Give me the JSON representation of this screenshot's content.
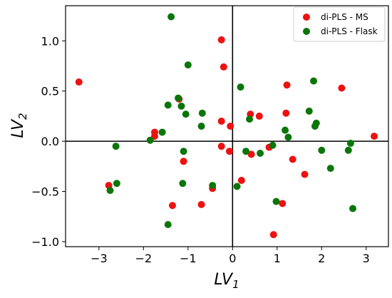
{
  "chart_data": {
    "type": "scatter",
    "title": "",
    "xlabel": "LV",
    "xlabel_subscript": "1",
    "ylabel": "LV",
    "ylabel_subscript": "2",
    "xlim": [
      -3.75,
      3.5
    ],
    "ylim": [
      -1.05,
      1.35
    ],
    "xticks": [
      -3,
      -2,
      -1,
      0,
      1,
      2,
      3
    ],
    "xtick_labels": [
      "−3",
      "−2",
      "−1",
      "0",
      "1",
      "2",
      "3"
    ],
    "yticks": [
      -1.0,
      -0.5,
      0.0,
      0.5,
      1.0
    ],
    "ytick_labels": [
      "−1.0",
      "−0.5",
      "0.0",
      "0.5",
      "1.0"
    ],
    "grid": false,
    "zero_lines": true,
    "legend_position": "top-right",
    "series": [
      {
        "name": "di-PLS - MS",
        "color": "#ee1111",
        "points": [
          [
            -3.45,
            0.59
          ],
          [
            -2.78,
            -0.44
          ],
          [
            -1.75,
            0.09
          ],
          [
            -1.75,
            0.05
          ],
          [
            -1.2,
            0.42
          ],
          [
            -1.1,
            -0.2
          ],
          [
            -1.35,
            -0.64
          ],
          [
            -0.7,
            -0.63
          ],
          [
            -0.45,
            -0.47
          ],
          [
            -0.25,
            1.01
          ],
          [
            -0.2,
            0.74
          ],
          [
            -0.25,
            0.2
          ],
          [
            -0.05,
            0.15
          ],
          [
            -0.25,
            -0.05
          ],
          [
            -0.07,
            -0.1
          ],
          [
            0.2,
            -0.39
          ],
          [
            0.4,
            0.27
          ],
          [
            0.42,
            -0.13
          ],
          [
            0.6,
            0.25
          ],
          [
            0.82,
            -0.06
          ],
          [
            0.92,
            -0.93
          ],
          [
            1.12,
            -0.62
          ],
          [
            1.2,
            0.28
          ],
          [
            1.22,
            0.56
          ],
          [
            1.35,
            -0.18
          ],
          [
            1.62,
            -0.33
          ],
          [
            2.45,
            0.53
          ],
          [
            3.18,
            0.05
          ]
        ]
      },
      {
        "name": "di-PLS - Flask",
        "color": "#0a760a",
        "points": [
          [
            -2.75,
            -0.49
          ],
          [
            -2.62,
            -0.05
          ],
          [
            -2.6,
            -0.42
          ],
          [
            -1.85,
            0.01
          ],
          [
            -1.58,
            0.09
          ],
          [
            -1.45,
            0.36
          ],
          [
            -1.38,
            1.24
          ],
          [
            -1.22,
            0.43
          ],
          [
            -1.15,
            0.35
          ],
          [
            -1.05,
            0.27
          ],
          [
            -1.0,
            0.76
          ],
          [
            -1.1,
            -0.1
          ],
          [
            -1.12,
            -0.42
          ],
          [
            -1.45,
            -0.83
          ],
          [
            -0.7,
            0.15
          ],
          [
            -0.68,
            0.28
          ],
          [
            -0.45,
            -0.44
          ],
          [
            0.1,
            -0.45
          ],
          [
            0.18,
            0.54
          ],
          [
            0.3,
            -0.1
          ],
          [
            0.38,
            0.22
          ],
          [
            0.62,
            -0.12
          ],
          [
            0.9,
            -0.04
          ],
          [
            0.98,
            -0.6
          ],
          [
            1.18,
            0.11
          ],
          [
            1.25,
            0.04
          ],
          [
            1.72,
            0.3
          ],
          [
            1.82,
            0.6
          ],
          [
            1.85,
            0.15
          ],
          [
            1.88,
            0.18
          ],
          [
            2.0,
            -0.09
          ],
          [
            2.2,
            -0.27
          ],
          [
            2.6,
            -0.09
          ],
          [
            2.65,
            -0.02
          ],
          [
            2.7,
            -0.67
          ]
        ]
      }
    ]
  }
}
